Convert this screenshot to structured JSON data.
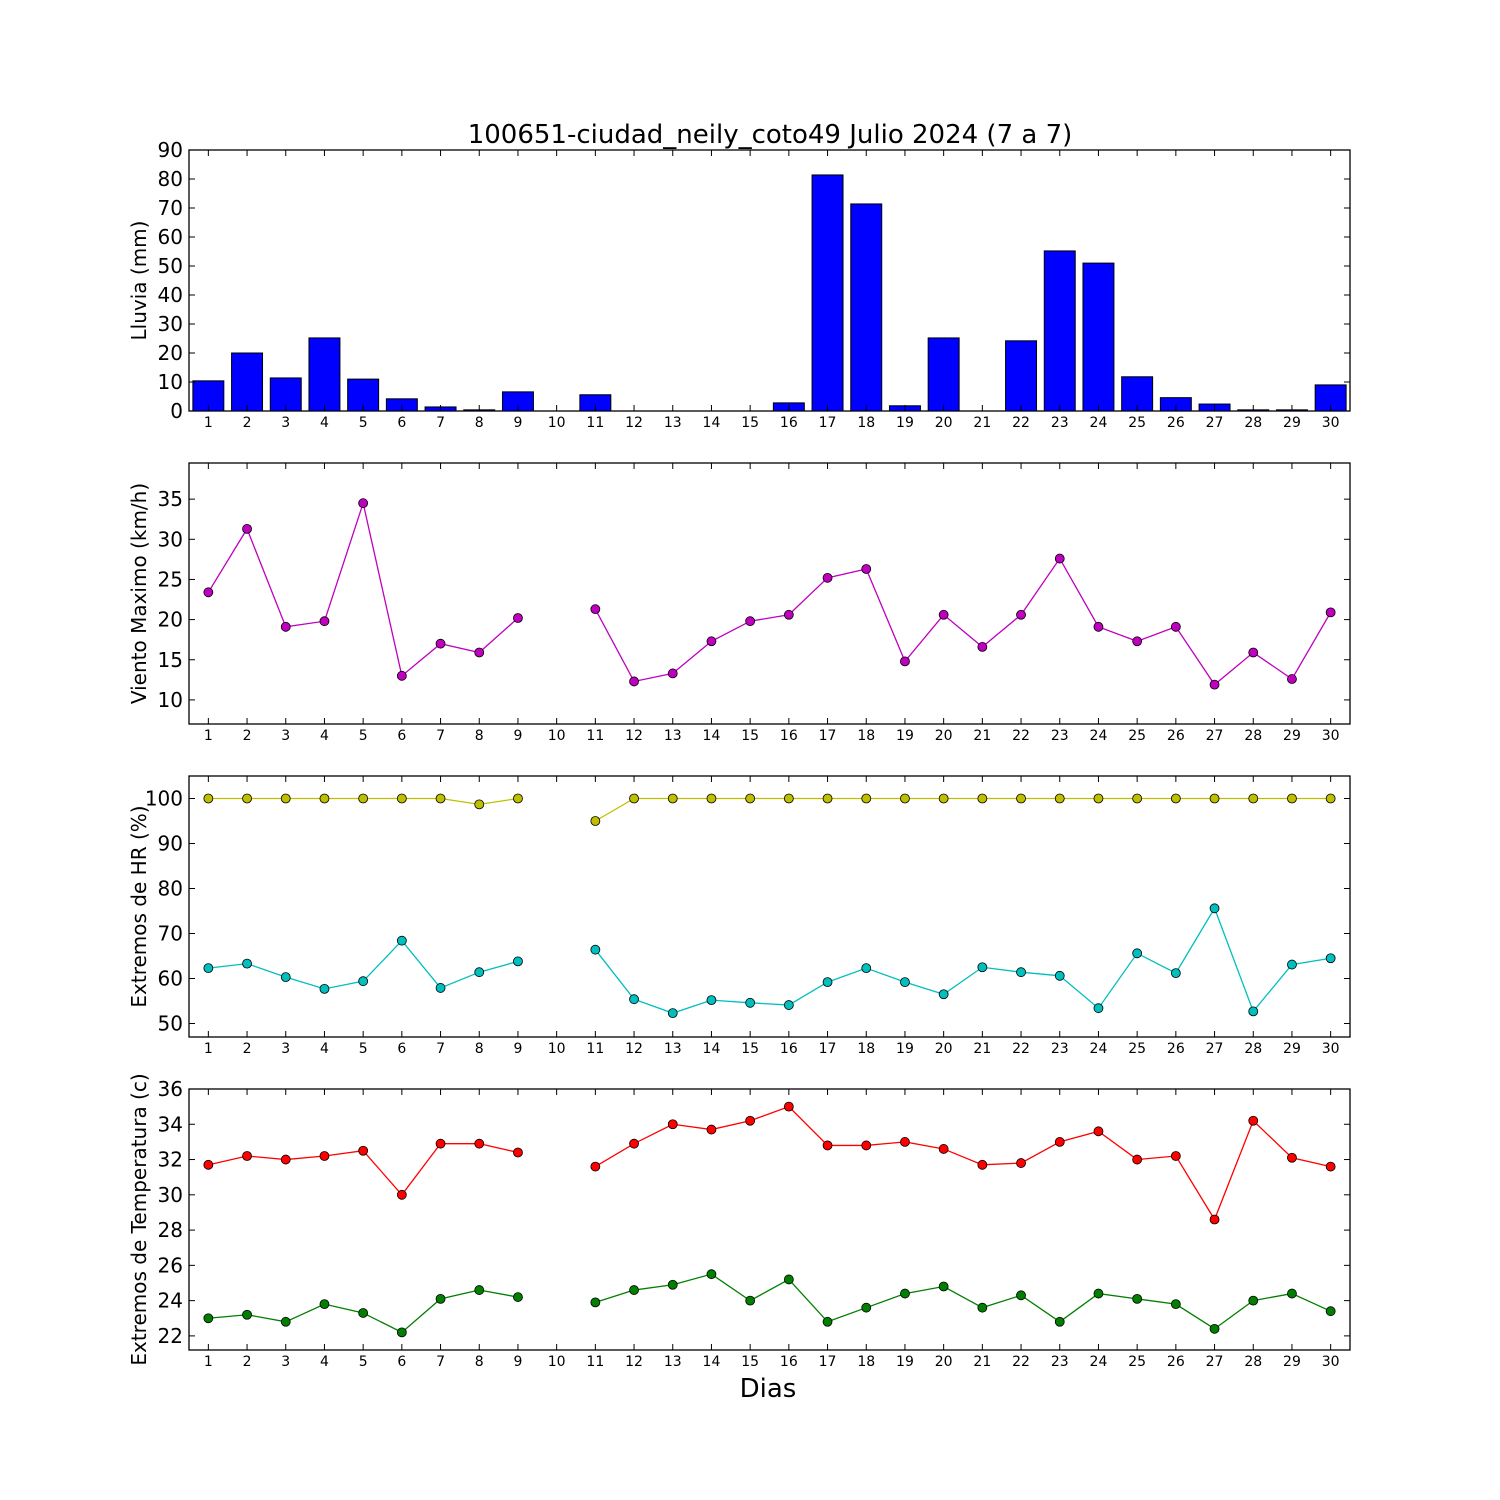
{
  "chart_data": {
    "type": "multi-panel",
    "title": "100651-ciudad_neily_coto49 Julio 2024  (7 a 7)",
    "xlabel": "Dias",
    "days": [
      1,
      2,
      3,
      4,
      5,
      6,
      7,
      8,
      9,
      10,
      11,
      12,
      13,
      14,
      15,
      16,
      17,
      18,
      19,
      20,
      21,
      22,
      23,
      24,
      25,
      26,
      27,
      28,
      29,
      30
    ],
    "panels": [
      {
        "type": "bar",
        "ylabel": "Lluvia (mm)",
        "ylim": [
          0,
          90
        ],
        "yticks": [
          0,
          10,
          20,
          30,
          40,
          50,
          60,
          70,
          80,
          90
        ],
        "grid": false,
        "series": [
          {
            "color": "#0000ff",
            "values": [
              10.4,
              20.0,
              11.4,
              25.2,
              11.0,
              4.2,
              1.4,
              0.4,
              6.6,
              0,
              5.6,
              0,
              0,
              0,
              0,
              2.8,
              81.4,
              71.4,
              1.8,
              25.2,
              0,
              24.2,
              55.2,
              51.0,
              11.8,
              4.6,
              2.4,
              0.4,
              0.4,
              9.0
            ]
          }
        ]
      },
      {
        "type": "line",
        "ylabel": "Viento Maximo (km/h)",
        "ylim": [
          7,
          39.5
        ],
        "yticks": [
          10,
          15,
          20,
          25,
          30,
          35
        ],
        "grid": false,
        "series": [
          {
            "color": "#bf00bf",
            "values": [
              23.4,
              31.3,
              19.1,
              19.8,
              34.5,
              13.0,
              17.0,
              15.9,
              20.2,
              null,
              21.3,
              12.3,
              13.3,
              17.3,
              19.8,
              20.6,
              25.2,
              26.3,
              14.8,
              20.6,
              16.6,
              20.6,
              27.6,
              19.1,
              17.3,
              19.1,
              11.9,
              15.9,
              12.6,
              20.9
            ]
          }
        ]
      },
      {
        "type": "line",
        "ylabel": "Extremos de HR (%)",
        "ylim": [
          47,
          105
        ],
        "yticks": [
          50,
          60,
          70,
          80,
          90,
          100
        ],
        "grid": false,
        "series": [
          {
            "color": "#bfbf00",
            "values": [
              100,
              100,
              100,
              100,
              100,
              100,
              100,
              98.7,
              100,
              null,
              95.0,
              100,
              100,
              100,
              100,
              100,
              100,
              100,
              100,
              100,
              100,
              100,
              100,
              100,
              100,
              100,
              100,
              100,
              100,
              100
            ]
          },
          {
            "color": "#00bfbf",
            "values": [
              62.3,
              63.3,
              60.3,
              57.7,
              59.4,
              68.4,
              57.9,
              61.4,
              63.8,
              null,
              66.4,
              55.4,
              52.3,
              55.2,
              54.6,
              54.1,
              59.2,
              62.3,
              59.2,
              56.5,
              62.5,
              61.4,
              60.6,
              53.4,
              65.6,
              61.2,
              75.6,
              52.7,
              63.1,
              64.5
            ]
          }
        ]
      },
      {
        "type": "line",
        "ylabel": "Extremos de Temperatura (c)",
        "ylim": [
          21.2,
          36
        ],
        "yticks": [
          22,
          24,
          26,
          28,
          30,
          32,
          34,
          36
        ],
        "grid": false,
        "series": [
          {
            "color": "#ff0000",
            "values": [
              31.7,
              32.2,
              32.0,
              32.2,
              32.5,
              30.0,
              32.9,
              32.9,
              32.4,
              null,
              31.6,
              32.9,
              34.0,
              33.7,
              34.2,
              35.0,
              32.8,
              32.8,
              33.0,
              32.6,
              31.7,
              31.8,
              33.0,
              33.6,
              32.0,
              32.2,
              28.6,
              34.2,
              32.1,
              31.6
            ]
          },
          {
            "color": "#007f00",
            "values": [
              23.0,
              23.2,
              22.8,
              23.8,
              23.3,
              22.2,
              24.1,
              24.6,
              24.2,
              null,
              23.9,
              24.6,
              24.9,
              25.5,
              24.0,
              25.2,
              22.8,
              23.6,
              24.4,
              24.8,
              23.6,
              24.3,
              22.8,
              24.4,
              24.1,
              23.8,
              22.4,
              24.0,
              24.4,
              23.4
            ]
          }
        ]
      }
    ]
  }
}
